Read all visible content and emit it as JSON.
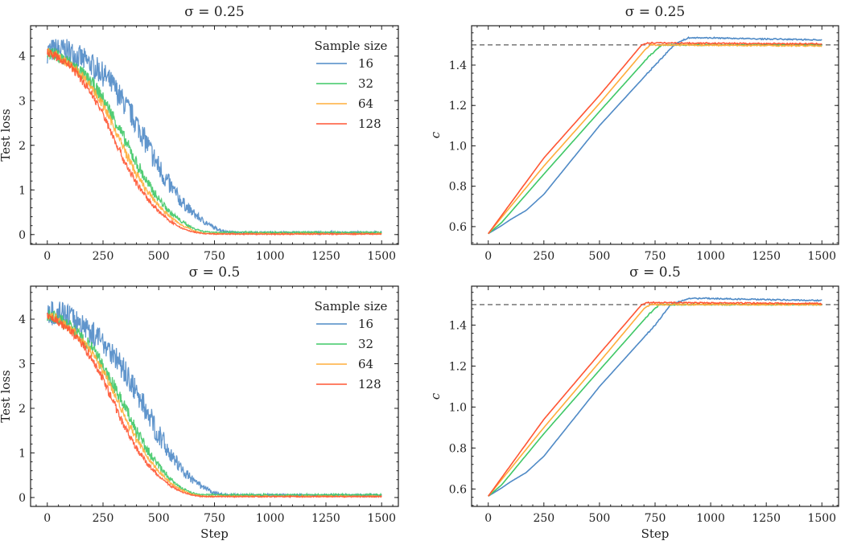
{
  "chart_data": [
    {
      "type": "line",
      "title": "σ = 0.25",
      "xlabel": "",
      "ylabel": "Test loss",
      "xlim": [
        -75,
        1575
      ],
      "ylim": [
        -0.22,
        4.68
      ],
      "xticks": [
        "0",
        "250",
        "500",
        "750",
        "1000",
        "1250",
        "1500"
      ],
      "yticks": [
        "0",
        "1",
        "2",
        "3",
        "4"
      ],
      "legend": {
        "title": "Sample size",
        "placement": "top-right"
      },
      "series": [
        {
          "name": "16",
          "color": "#4f8ac6",
          "points": [
            [
              0,
              4.1
            ],
            [
              50,
              4.15
            ],
            [
              100,
              4.1
            ],
            [
              150,
              3.95
            ],
            [
              200,
              3.8
            ],
            [
              250,
              3.6
            ],
            [
              300,
              3.3
            ],
            [
              350,
              2.9
            ],
            [
              400,
              2.5
            ],
            [
              450,
              2.0
            ],
            [
              500,
              1.5
            ],
            [
              550,
              1.1
            ],
            [
              600,
              0.75
            ],
            [
              650,
              0.5
            ],
            [
              700,
              0.3
            ],
            [
              750,
              0.15
            ],
            [
              800,
              0.07
            ],
            [
              850,
              0.04
            ],
            [
              1500,
              0.04
            ]
          ]
        },
        {
          "name": "32",
          "color": "#3fc866",
          "points": [
            [
              0,
              4.1
            ],
            [
              50,
              4.0
            ],
            [
              100,
              3.85
            ],
            [
              150,
              3.65
            ],
            [
              200,
              3.4
            ],
            [
              250,
              3.05
            ],
            [
              300,
              2.6
            ],
            [
              350,
              2.1
            ],
            [
              400,
              1.6
            ],
            [
              450,
              1.15
            ],
            [
              500,
              0.8
            ],
            [
              550,
              0.5
            ],
            [
              600,
              0.3
            ],
            [
              650,
              0.15
            ],
            [
              700,
              0.07
            ],
            [
              750,
              0.05
            ],
            [
              1500,
              0.05
            ]
          ]
        },
        {
          "name": "64",
          "color": "#ffad3b",
          "points": [
            [
              0,
              4.1
            ],
            [
              50,
              4.0
            ],
            [
              100,
              3.8
            ],
            [
              150,
              3.6
            ],
            [
              200,
              3.3
            ],
            [
              250,
              2.9
            ],
            [
              300,
              2.4
            ],
            [
              350,
              1.85
            ],
            [
              400,
              1.35
            ],
            [
              450,
              0.95
            ],
            [
              500,
              0.65
            ],
            [
              550,
              0.4
            ],
            [
              600,
              0.22
            ],
            [
              650,
              0.1
            ],
            [
              700,
              0.03
            ],
            [
              750,
              0.02
            ],
            [
              1500,
              0.02
            ]
          ]
        },
        {
          "name": "128",
          "color": "#ff5533",
          "points": [
            [
              0,
              4.1
            ],
            [
              50,
              3.95
            ],
            [
              100,
              3.8
            ],
            [
              150,
              3.5
            ],
            [
              200,
              3.15
            ],
            [
              250,
              2.7
            ],
            [
              300,
              2.15
            ],
            [
              350,
              1.6
            ],
            [
              400,
              1.15
            ],
            [
              450,
              0.8
            ],
            [
              500,
              0.52
            ],
            [
              550,
              0.3
            ],
            [
              600,
              0.15
            ],
            [
              650,
              0.06
            ],
            [
              700,
              0.02
            ],
            [
              750,
              0.01
            ],
            [
              1500,
              0.01
            ]
          ]
        }
      ]
    },
    {
      "type": "line",
      "title": "σ = 0.25",
      "xlabel": "",
      "ylabel": "c",
      "xlim": [
        -75,
        1575
      ],
      "ylim": [
        0.512,
        1.595
      ],
      "xticks": [
        "0",
        "250",
        "500",
        "750",
        "1000",
        "1250",
        "1500"
      ],
      "yticks": [
        "0.6",
        "0.8",
        "1.0",
        "1.2",
        "1.4"
      ],
      "reference_line": {
        "y": 1.5,
        "style": "dashed",
        "color": "#808080"
      },
      "series": [
        {
          "name": "16",
          "color": "#4f8ac6",
          "points": [
            [
              0,
              0.565
            ],
            [
              60,
              0.605
            ],
            [
              100,
              0.635
            ],
            [
              170,
              0.68
            ],
            [
              250,
              0.76
            ],
            [
              500,
              1.1
            ],
            [
              750,
              1.4
            ],
            [
              840,
              1.505
            ],
            [
              900,
              1.535
            ],
            [
              1000,
              1.535
            ],
            [
              1200,
              1.53
            ],
            [
              1500,
              1.525
            ]
          ]
        },
        {
          "name": "32",
          "color": "#3fc866",
          "points": [
            [
              0,
              0.565
            ],
            [
              60,
              0.62
            ],
            [
              250,
              0.86
            ],
            [
              500,
              1.17
            ],
            [
              720,
              1.44
            ],
            [
              780,
              1.5
            ],
            [
              1500,
              1.5
            ]
          ]
        },
        {
          "name": "64",
          "color": "#ffad3b",
          "points": [
            [
              0,
              0.565
            ],
            [
              250,
              0.9
            ],
            [
              500,
              1.21
            ],
            [
              700,
              1.47
            ],
            [
              730,
              1.5
            ],
            [
              1500,
              1.495
            ]
          ]
        },
        {
          "name": "128",
          "color": "#ff5533",
          "points": [
            [
              0,
              0.565
            ],
            [
              250,
              0.94
            ],
            [
              500,
              1.25
            ],
            [
              690,
              1.5
            ],
            [
              720,
              1.51
            ],
            [
              1500,
              1.505
            ]
          ]
        }
      ]
    },
    {
      "type": "line",
      "title": "σ = 0.5",
      "xlabel": "Step",
      "ylabel": "Test loss",
      "xlim": [
        -75,
        1575
      ],
      "ylim": [
        -0.2,
        4.74
      ],
      "xticks": [
        "0",
        "250",
        "500",
        "750",
        "1000",
        "1250",
        "1500"
      ],
      "yticks": [
        "0",
        "1",
        "2",
        "3",
        "4"
      ],
      "legend": {
        "title": "Sample size",
        "placement": "top-right"
      },
      "series": [
        {
          "name": "16",
          "color": "#4f8ac6",
          "points": [
            [
              0,
              4.1
            ],
            [
              50,
              4.15
            ],
            [
              100,
              4.05
            ],
            [
              150,
              3.9
            ],
            [
              200,
              3.7
            ],
            [
              250,
              3.5
            ],
            [
              300,
              3.2
            ],
            [
              350,
              2.8
            ],
            [
              400,
              2.35
            ],
            [
              450,
              1.9
            ],
            [
              500,
              1.4
            ],
            [
              550,
              1.0
            ],
            [
              600,
              0.65
            ],
            [
              650,
              0.4
            ],
            [
              700,
              0.22
            ],
            [
              750,
              0.1
            ],
            [
              800,
              0.05
            ],
            [
              1500,
              0.05
            ]
          ]
        },
        {
          "name": "32",
          "color": "#3fc866",
          "points": [
            [
              0,
              4.1
            ],
            [
              50,
              4.0
            ],
            [
              100,
              3.85
            ],
            [
              150,
              3.6
            ],
            [
              200,
              3.35
            ],
            [
              250,
              2.95
            ],
            [
              300,
              2.5
            ],
            [
              350,
              2.0
            ],
            [
              400,
              1.5
            ],
            [
              450,
              1.05
            ],
            [
              500,
              0.7
            ],
            [
              550,
              0.42
            ],
            [
              600,
              0.22
            ],
            [
              650,
              0.1
            ],
            [
              700,
              0.06
            ],
            [
              1500,
              0.06
            ]
          ]
        },
        {
          "name": "64",
          "color": "#ffad3b",
          "points": [
            [
              0,
              4.1
            ],
            [
              50,
              3.98
            ],
            [
              100,
              3.8
            ],
            [
              150,
              3.55
            ],
            [
              200,
              3.25
            ],
            [
              250,
              2.85
            ],
            [
              300,
              2.35
            ],
            [
              350,
              1.8
            ],
            [
              400,
              1.3
            ],
            [
              450,
              0.9
            ],
            [
              500,
              0.58
            ],
            [
              550,
              0.34
            ],
            [
              600,
              0.17
            ],
            [
              650,
              0.07
            ],
            [
              700,
              0.03
            ],
            [
              1500,
              0.03
            ]
          ]
        },
        {
          "name": "128",
          "color": "#ff5533",
          "points": [
            [
              0,
              4.1
            ],
            [
              50,
              3.95
            ],
            [
              100,
              3.75
            ],
            [
              150,
              3.5
            ],
            [
              200,
              3.1
            ],
            [
              250,
              2.65
            ],
            [
              300,
              2.1
            ],
            [
              350,
              1.55
            ],
            [
              400,
              1.1
            ],
            [
              450,
              0.75
            ],
            [
              500,
              0.48
            ],
            [
              550,
              0.27
            ],
            [
              600,
              0.13
            ],
            [
              650,
              0.05
            ],
            [
              700,
              0.02
            ],
            [
              1500,
              0.02
            ]
          ]
        }
      ]
    },
    {
      "type": "line",
      "title": "σ = 0.5",
      "xlabel": "Step",
      "ylabel": "c",
      "xlim": [
        -75,
        1575
      ],
      "ylim": [
        0.515,
        1.59
      ],
      "xticks": [
        "0",
        "250",
        "500",
        "750",
        "1000",
        "1250",
        "1500"
      ],
      "yticks": [
        "0.6",
        "0.8",
        "1.0",
        "1.2",
        "1.4"
      ],
      "reference_line": {
        "y": 1.5,
        "style": "dashed",
        "color": "#808080"
      },
      "series": [
        {
          "name": "16",
          "color": "#4f8ac6",
          "points": [
            [
              0,
              0.565
            ],
            [
              60,
              0.605
            ],
            [
              100,
              0.635
            ],
            [
              170,
              0.68
            ],
            [
              250,
              0.76
            ],
            [
              500,
              1.1
            ],
            [
              750,
              1.4
            ],
            [
              820,
              1.5
            ],
            [
              900,
              1.53
            ],
            [
              1000,
              1.53
            ],
            [
              1200,
              1.525
            ],
            [
              1500,
              1.52
            ]
          ]
        },
        {
          "name": "32",
          "color": "#3fc866",
          "points": [
            [
              0,
              0.565
            ],
            [
              60,
              0.62
            ],
            [
              250,
              0.87
            ],
            [
              500,
              1.18
            ],
            [
              720,
              1.45
            ],
            [
              770,
              1.5
            ],
            [
              1500,
              1.5
            ]
          ]
        },
        {
          "name": "64",
          "color": "#ffad3b",
          "points": [
            [
              0,
              0.565
            ],
            [
              250,
              0.9
            ],
            [
              500,
              1.22
            ],
            [
              700,
              1.48
            ],
            [
              730,
              1.5
            ],
            [
              1500,
              1.5
            ]
          ]
        },
        {
          "name": "128",
          "color": "#ff5533",
          "points": [
            [
              0,
              0.565
            ],
            [
              250,
              0.94
            ],
            [
              500,
              1.26
            ],
            [
              690,
              1.5
            ],
            [
              720,
              1.51
            ],
            [
              1500,
              1.505
            ]
          ]
        }
      ]
    }
  ]
}
